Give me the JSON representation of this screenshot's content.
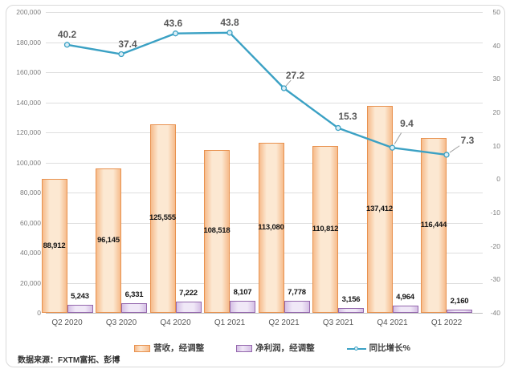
{
  "source_note": "数据来源：FXTM富拓、彭博",
  "colors": {
    "revenue_border": "#e8914e",
    "revenue_fill_edge": "#f6bb8b",
    "revenue_fill_center": "#fce8d2",
    "profit_border": "#9467ad",
    "profit_fill_edge": "#d5bfe5",
    "profit_fill_center": "#f0e8f7",
    "growth_line": "#3ba1c4",
    "marker_fill": "#ddeff7",
    "gridline": "#dedede",
    "axis_text": "#7f7f7f",
    "category_text": "#595959",
    "bar_label_text": "#141414",
    "growth_label_text": "#595959",
    "leader_line": "#a0a0a0",
    "frame_border": "#d9d9d9"
  },
  "chart_data": {
    "type": "bar",
    "subtype": "combo-bar-line",
    "title": "",
    "xlabel": "",
    "ylabel": "",
    "grid": true,
    "legend_position": "bottom",
    "categories": [
      "Q2 2020",
      "Q3 2020",
      "Q4 2020",
      "Q1 2021",
      "Q2 2021",
      "Q3 2021",
      "Q4 2021",
      "Q1 2022"
    ],
    "series": [
      {
        "name": "营收，经调整",
        "type": "bar",
        "axis": "left",
        "values": [
          88912,
          96145,
          125555,
          108518,
          113080,
          110812,
          137412,
          116444
        ],
        "labels": [
          "88,912",
          "96,145",
          "125,555",
          "108,518",
          "113,080",
          "110,812",
          "137,412",
          "116,444"
        ]
      },
      {
        "name": "净利润，经调整",
        "type": "bar",
        "axis": "left",
        "values": [
          5243,
          6331,
          7222,
          8107,
          7778,
          3156,
          4964,
          2160
        ],
        "labels": [
          "5,243",
          "6,331",
          "7,222",
          "8,107",
          "7,778",
          "3,156",
          "4,964",
          "2,160"
        ]
      },
      {
        "name": "同比增长%",
        "type": "line",
        "axis": "right",
        "values": [
          40.2,
          37.4,
          43.6,
          43.8,
          27.2,
          15.3,
          9.4,
          7.3
        ],
        "labels": [
          "40.2",
          "37.4",
          "43.6",
          "43.8",
          "27.2",
          "15.3",
          "9.4",
          "7.3"
        ]
      }
    ],
    "left_axis": {
      "min": 0,
      "max": 200000,
      "step": 20000,
      "ticks": [
        "0",
        "20,000",
        "40,000",
        "60,000",
        "80,000",
        "100,000",
        "120,000",
        "140,000",
        "160,000",
        "180,000",
        "200,000"
      ]
    },
    "right_axis": {
      "min": -40,
      "max": 50,
      "step": 10,
      "ticks": [
        "50",
        "40",
        "30",
        "20",
        "10",
        "0",
        "-10",
        "-20",
        "-30",
        "-40"
      ]
    }
  }
}
